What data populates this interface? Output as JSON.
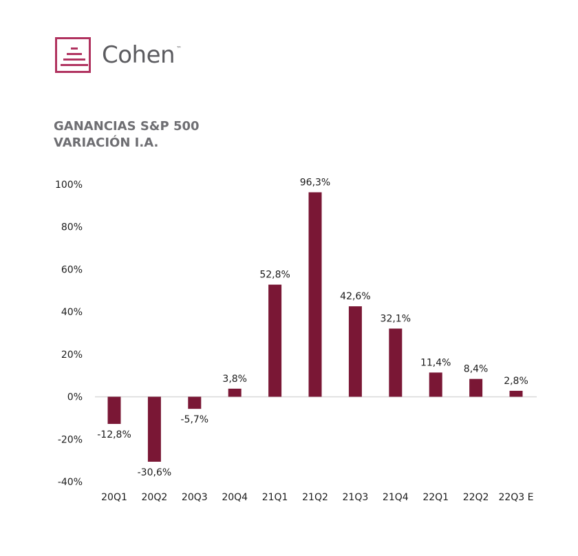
{
  "brand": {
    "name": "Cohen",
    "trademark": "™",
    "color": "#b0325f"
  },
  "chart_data": {
    "type": "bar",
    "title_lines": [
      "GANANCIAS S&P 500",
      "VARIACIÓN I.A."
    ],
    "categories": [
      "20Q1",
      "20Q2",
      "20Q3",
      "20Q4",
      "21Q1",
      "21Q2",
      "21Q3",
      "21Q4",
      "22Q1",
      "22Q2",
      "22Q3 E"
    ],
    "values": [
      -12.8,
      -30.6,
      -5.7,
      3.8,
      52.8,
      96.3,
      42.6,
      32.1,
      11.4,
      8.4,
      2.8
    ],
    "value_labels": [
      "-12,8%",
      "-30,6%",
      "-5,7%",
      "3,8%",
      "52,8%",
      "96,3%",
      "42,6%",
      "32,1%",
      "11,4%",
      "8,4%",
      "2,8%"
    ],
    "yticks": [
      -40,
      -20,
      0,
      20,
      40,
      60,
      80,
      100
    ],
    "ytick_labels": [
      "-40%",
      "-20%",
      "0%",
      "20%",
      "40%",
      "60%",
      "80%",
      "100%"
    ],
    "ylim": [
      -40,
      100
    ],
    "bar_color": "#7a1735",
    "axis_color": "#d9d9d9",
    "grid": false,
    "legend": "none"
  }
}
